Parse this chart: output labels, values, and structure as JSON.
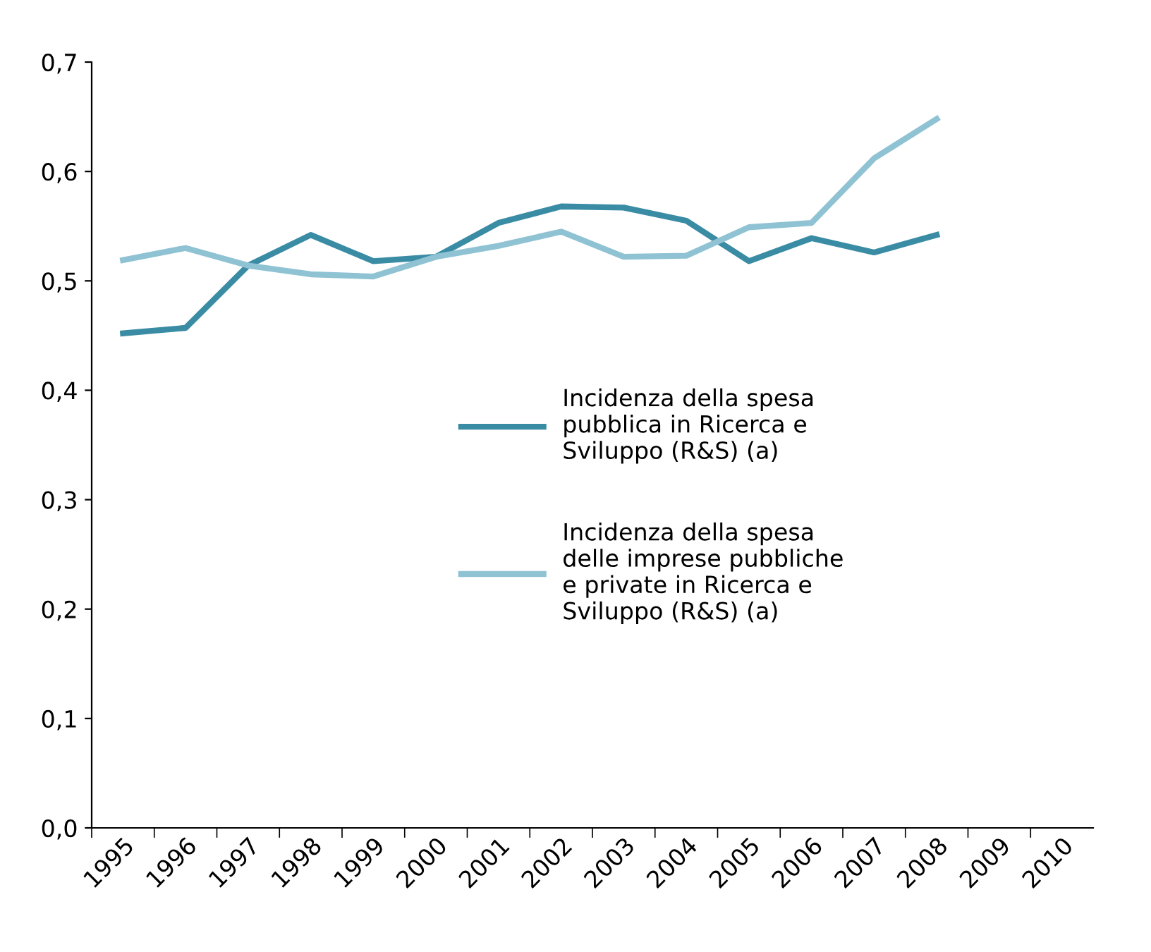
{
  "chart_data": {
    "type": "line",
    "categories": [
      "1995",
      "1996",
      "1997",
      "1998",
      "1999",
      "2000",
      "2001",
      "2002",
      "2003",
      "2004",
      "2005",
      "2006",
      "2007",
      "2008",
      "2009",
      "2010"
    ],
    "series": [
      {
        "name": "Incidenza della spesa pubblica in Ricerca e Sviluppo (R&S) (a)",
        "color": "#3a8ca4",
        "values": [
          0.452,
          0.457,
          0.514,
          0.542,
          0.518,
          0.522,
          0.553,
          0.568,
          0.567,
          0.555,
          0.518,
          0.539,
          0.526,
          0.542,
          null,
          null
        ]
      },
      {
        "name": "Incidenza della spesa delle imprese pubbliche e private in Ricerca e Sviluppo (R&S) (a)",
        "color": "#8fc3d3",
        "values": [
          0.519,
          0.53,
          0.514,
          0.506,
          0.504,
          0.522,
          0.532,
          0.545,
          0.522,
          0.523,
          0.549,
          0.553,
          0.612,
          0.648,
          null,
          null
        ]
      }
    ],
    "ylim": [
      0,
      0.7
    ],
    "yticks": [
      {
        "value": 0,
        "label": "0,0"
      },
      {
        "value": 0.1,
        "label": "0,1"
      },
      {
        "value": 0.2,
        "label": "0,2"
      },
      {
        "value": 0.3,
        "label": "0,3"
      },
      {
        "value": 0.4,
        "label": "0,4"
      },
      {
        "value": 0.5,
        "label": "0,5"
      },
      {
        "value": 0.6,
        "label": "0,6"
      },
      {
        "value": 0.7,
        "label": "0,7"
      }
    ],
    "legend": "center",
    "grid": false,
    "marker": "none",
    "line_style": "solid"
  }
}
